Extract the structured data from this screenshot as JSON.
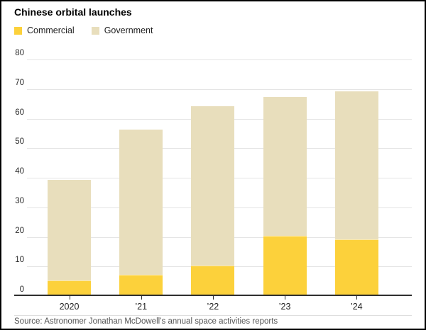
{
  "header": {
    "title": "Chinese orbital launches"
  },
  "legend": {
    "items": [
      {
        "label": "Commercial",
        "color": "#fcd13b"
      },
      {
        "label": "Government",
        "color": "#e8debc"
      }
    ]
  },
  "footer": {
    "source": "Source: Astronomer Jonathan McDowell’s annual space activities reports"
  },
  "chart_data": {
    "type": "bar",
    "stacked": true,
    "title": "Chinese orbital launches",
    "categories": [
      "2020",
      "’21",
      "’22",
      "’23",
      "’24"
    ],
    "series": [
      {
        "name": "Commercial",
        "color": "#fcd13b",
        "values": [
          5,
          7,
          10,
          20,
          19
        ]
      },
      {
        "name": "Government",
        "color": "#e8debc",
        "values": [
          34,
          49,
          54,
          47,
          50
        ]
      }
    ],
    "stacked_totals": [
      39,
      56,
      64,
      67,
      69
    ],
    "xlabel": "",
    "ylabel": "",
    "ylim": [
      0,
      80
    ],
    "yticks": [
      0,
      10,
      20,
      30,
      40,
      50,
      60,
      70,
      80
    ],
    "grid": true,
    "legend_position": "top-left",
    "axis_color": "#2f2f2f",
    "gridline_color": "#e4e4e4"
  }
}
